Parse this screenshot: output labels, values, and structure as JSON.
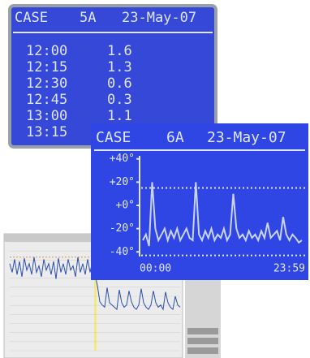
{
  "screen_1": {
    "case": "CASE",
    "id": "5A",
    "date": "23-May-07",
    "rows": [
      [
        "12:00",
        "1.6"
      ],
      [
        "12:15",
        "1.3"
      ],
      [
        "12:30",
        "0.6"
      ],
      [
        "12:45",
        "0.3"
      ],
      [
        "13:00",
        "1.1"
      ],
      [
        "13:15"
      ]
    ]
  },
  "screen_2": {
    "case": "CASE",
    "id": "6A",
    "date": "23-May-07",
    "chart_data": {
      "type": "line",
      "categories_start": "00:00",
      "categories_end": "23:59",
      "values": [
        -30,
        -25,
        -35,
        20,
        -20,
        -30,
        -25,
        -20,
        -30,
        -22,
        -28,
        -20,
        -30,
        -25,
        -20,
        -28,
        -30,
        20,
        -25,
        -30,
        -22,
        -28,
        -20,
        -30,
        -25,
        -28,
        -20,
        -30,
        -25,
        10,
        -20,
        -28,
        -25,
        -30,
        -22,
        -28,
        -25,
        -30,
        -22,
        -28,
        -15,
        -28,
        -25,
        -22,
        -30,
        -10,
        -25,
        -30,
        -25,
        -28,
        -32,
        -30
      ],
      "color": "#c8d4ff",
      "ylim": [
        -44,
        44
      ],
      "yticks": [
        {
          "value": 40,
          "label": "+40°"
        },
        {
          "value": 20,
          "label": "+20°"
        },
        {
          "value": 0,
          "label": "+0°"
        },
        {
          "value": -20,
          "label": "-20°"
        },
        {
          "value": -40,
          "label": "-40°"
        }
      ],
      "limits": [
        15,
        -43
      ]
    }
  },
  "screen_3": {
    "chart_data": {
      "type": "line",
      "values": [
        80,
        72,
        84,
        70,
        82,
        68,
        85,
        74,
        80,
        70,
        86,
        72,
        78,
        68,
        84,
        74,
        80,
        70,
        82,
        66,
        85,
        72,
        80,
        70,
        84,
        74,
        78,
        68,
        86,
        72,
        80,
        70,
        84,
        72,
        82,
        70,
        60,
        45,
        42,
        40,
        58,
        44,
        42,
        40,
        38,
        56,
        44,
        40,
        42,
        55,
        45,
        40,
        38,
        42,
        57,
        44,
        40,
        38,
        42,
        55,
        44,
        40,
        42,
        38,
        54,
        44,
        40,
        38,
        50,
        42,
        40
      ],
      "color": "#2a4ea8",
      "ylim": [
        0,
        100
      ],
      "limit": 86
    }
  }
}
